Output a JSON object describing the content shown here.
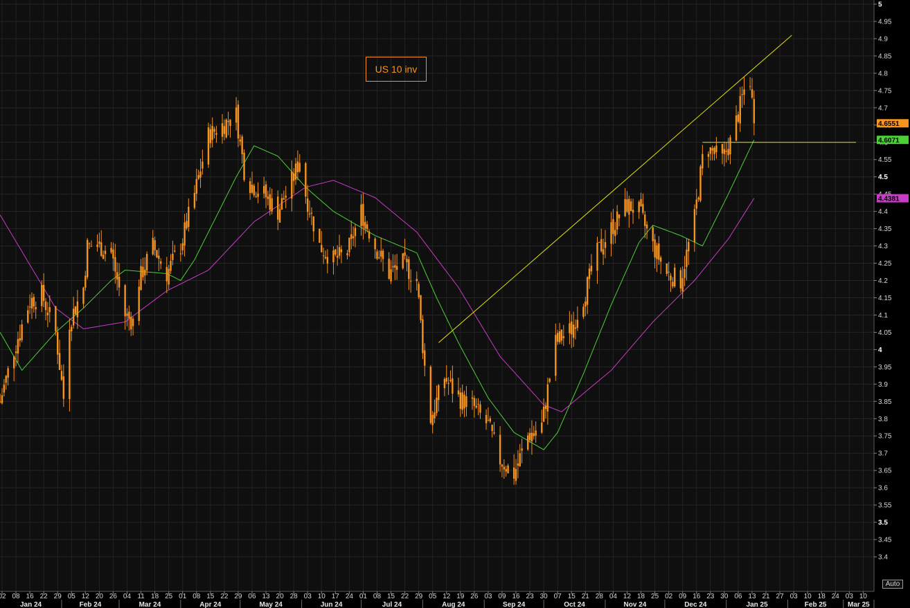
{
  "chart_data": {
    "type": "candlestick",
    "title": "US 10 inv",
    "ylim": [
      3.35,
      5.0
    ],
    "y_ticks": [
      "5",
      "4.95",
      "4.9",
      "4.85",
      "4.8",
      "4.75",
      "4.7",
      "4.65",
      "4.6",
      "4.55",
      "4.5",
      "4.45",
      "4.4",
      "4.35",
      "4.3",
      "4.25",
      "4.2",
      "4.15",
      "4.1",
      "4.05",
      "4",
      "3.95",
      "3.9",
      "3.85",
      "3.8",
      "3.75",
      "3.7",
      "3.65",
      "3.6",
      "3.55",
      "3.5",
      "3.45",
      "3.4"
    ],
    "y_major_ticks": [
      "5",
      "4.5",
      "4",
      "3.5"
    ],
    "x_day_ticks": [
      "02",
      "08",
      "16",
      "22",
      "29",
      "05",
      "12",
      "20",
      "26",
      "04",
      "11",
      "18",
      "25",
      "01",
      "08",
      "15",
      "22",
      "29",
      "06",
      "13",
      "20",
      "28",
      "03",
      "10",
      "17",
      "24",
      "01",
      "08",
      "15",
      "22",
      "29",
      "05",
      "12",
      "19",
      "26",
      "03",
      "09",
      "16",
      "23",
      "30",
      "07",
      "15",
      "21",
      "28",
      "04",
      "12",
      "18",
      "25",
      "02",
      "09",
      "16",
      "23",
      "30",
      "06",
      "13",
      "21",
      "27",
      "03",
      "10",
      "18",
      "24",
      "03",
      "10",
      "17",
      "24"
    ],
    "x_month_ticks": [
      "Jan 24",
      "Feb 24",
      "Mar 24",
      "Apr 24",
      "May 24",
      "Jun 24",
      "Jul 24",
      "Aug 24",
      "Sep 24",
      "Oct 24",
      "Nov 24",
      "Dec 24",
      "Jan 25",
      "Feb 25",
      "Mar 25"
    ],
    "series": [
      {
        "style": "candlestick",
        "color": "#f7941d",
        "anchors": [
          [
            "2024-01-01",
            3.85
          ],
          [
            "2024-01-08",
            4.0
          ],
          [
            "2024-01-16",
            4.14
          ],
          [
            "2024-01-22",
            4.16
          ],
          [
            "2024-01-29",
            4.05
          ],
          [
            "2024-02-02",
            3.86
          ],
          [
            "2024-02-05",
            4.08
          ],
          [
            "2024-02-12",
            4.18
          ],
          [
            "2024-02-14",
            4.3
          ],
          [
            "2024-02-20",
            4.3
          ],
          [
            "2024-02-26",
            4.28
          ],
          [
            "2024-03-04",
            4.1
          ],
          [
            "2024-03-08",
            4.08
          ],
          [
            "2024-03-11",
            4.2
          ],
          [
            "2024-03-18",
            4.3
          ],
          [
            "2024-03-25",
            4.22
          ],
          [
            "2024-04-01",
            4.3
          ],
          [
            "2024-04-08",
            4.45
          ],
          [
            "2024-04-15",
            4.62
          ],
          [
            "2024-04-22",
            4.65
          ],
          [
            "2024-04-29",
            4.68
          ],
          [
            "2024-05-03",
            4.52
          ],
          [
            "2024-05-06",
            4.48
          ],
          [
            "2024-05-13",
            4.45
          ],
          [
            "2024-05-20",
            4.4
          ],
          [
            "2024-05-28",
            4.5
          ],
          [
            "2024-05-31",
            4.55
          ],
          [
            "2024-06-03",
            4.45
          ],
          [
            "2024-06-10",
            4.3
          ],
          [
            "2024-06-17",
            4.26
          ],
          [
            "2024-06-24",
            4.28
          ],
          [
            "2024-07-01",
            4.4
          ],
          [
            "2024-07-08",
            4.3
          ],
          [
            "2024-07-15",
            4.22
          ],
          [
            "2024-07-22",
            4.25
          ],
          [
            "2024-07-29",
            4.2
          ],
          [
            "2024-08-02",
            3.95
          ],
          [
            "2024-08-05",
            3.8
          ],
          [
            "2024-08-12",
            3.92
          ],
          [
            "2024-08-19",
            3.86
          ],
          [
            "2024-08-26",
            3.84
          ],
          [
            "2024-09-03",
            3.78
          ],
          [
            "2024-09-09",
            3.68
          ],
          [
            "2024-09-16",
            3.64
          ],
          [
            "2024-09-23",
            3.75
          ],
          [
            "2024-09-30",
            3.78
          ],
          [
            "2024-10-04",
            3.92
          ],
          [
            "2024-10-07",
            4.02
          ],
          [
            "2024-10-15",
            4.06
          ],
          [
            "2024-10-21",
            4.15
          ],
          [
            "2024-10-28",
            4.28
          ],
          [
            "2024-11-04",
            4.35
          ],
          [
            "2024-11-12",
            4.42
          ],
          [
            "2024-11-18",
            4.4
          ],
          [
            "2024-11-25",
            4.3
          ],
          [
            "2024-12-02",
            4.22
          ],
          [
            "2024-12-09",
            4.2
          ],
          [
            "2024-12-16",
            4.38
          ],
          [
            "2024-12-20",
            4.55
          ],
          [
            "2024-12-23",
            4.58
          ],
          [
            "2024-12-30",
            4.55
          ],
          [
            "2025-01-03",
            4.6
          ],
          [
            "2025-01-06",
            4.66
          ],
          [
            "2025-01-10",
            4.75
          ],
          [
            "2025-01-13",
            4.78
          ],
          [
            "2025-01-15",
            4.6551
          ]
        ]
      },
      {
        "style": "line",
        "color": "#4cd137",
        "anchors": [
          [
            "2024-01-01",
            4.05
          ],
          [
            "2024-01-12",
            3.94
          ],
          [
            "2024-01-29",
            4.05
          ],
          [
            "2024-02-12",
            4.12
          ],
          [
            "2024-02-26",
            4.2
          ],
          [
            "2024-03-04",
            4.23
          ],
          [
            "2024-03-25",
            4.22
          ],
          [
            "2024-04-01",
            4.2
          ],
          [
            "2024-04-08",
            4.26
          ],
          [
            "2024-04-15",
            4.34
          ],
          [
            "2024-04-29",
            4.5
          ],
          [
            "2024-05-08",
            4.59
          ],
          [
            "2024-05-20",
            4.56
          ],
          [
            "2024-06-03",
            4.47
          ],
          [
            "2024-06-17",
            4.4
          ],
          [
            "2024-07-08",
            4.33
          ],
          [
            "2024-07-29",
            4.28
          ],
          [
            "2024-08-08",
            4.15
          ],
          [
            "2024-08-19",
            4.02
          ],
          [
            "2024-09-03",
            3.86
          ],
          [
            "2024-09-16",
            3.76
          ],
          [
            "2024-10-01",
            3.71
          ],
          [
            "2024-10-08",
            3.76
          ],
          [
            "2024-10-21",
            3.93
          ],
          [
            "2024-11-04",
            4.13
          ],
          [
            "2024-11-18",
            4.31
          ],
          [
            "2024-11-25",
            4.36
          ],
          [
            "2024-12-09",
            4.33
          ],
          [
            "2024-12-20",
            4.3
          ],
          [
            "2025-01-02",
            4.45
          ],
          [
            "2025-01-15",
            4.6071
          ]
        ]
      },
      {
        "style": "line",
        "color": "#c83cc8",
        "anchors": [
          [
            "2024-01-01",
            4.39
          ],
          [
            "2024-01-29",
            4.12
          ],
          [
            "2024-02-12",
            4.06
          ],
          [
            "2024-03-04",
            4.08
          ],
          [
            "2024-03-25",
            4.17
          ],
          [
            "2024-04-15",
            4.23
          ],
          [
            "2024-05-08",
            4.37
          ],
          [
            "2024-06-03",
            4.47
          ],
          [
            "2024-06-17",
            4.49
          ],
          [
            "2024-07-08",
            4.44
          ],
          [
            "2024-07-29",
            4.34
          ],
          [
            "2024-08-19",
            4.18
          ],
          [
            "2024-09-09",
            3.98
          ],
          [
            "2024-10-01",
            3.84
          ],
          [
            "2024-10-10",
            3.82
          ],
          [
            "2024-11-04",
            3.94
          ],
          [
            "2024-11-25",
            4.08
          ],
          [
            "2024-12-16",
            4.2
          ],
          [
            "2025-01-02",
            4.32
          ],
          [
            "2025-01-15",
            4.4381
          ]
        ]
      }
    ],
    "price_tags": [
      {
        "value": "4.6551",
        "y": 4.6551,
        "bg": "#f7941d",
        "fg": "#000000"
      },
      {
        "value": "4.6071",
        "y": 4.6071,
        "bg": "#4cd137",
        "fg": "#000000"
      },
      {
        "value": "4.4381",
        "y": 4.4381,
        "bg": "#c83cc8",
        "fg": "#000000"
      }
    ],
    "annotations": [
      {
        "type": "trendline",
        "color": "#e6e600",
        "from": [
          "2024-08-09",
          4.02
        ],
        "to": [
          "2025-02-03",
          4.91
        ]
      },
      {
        "type": "hline",
        "color": "#e6e600",
        "from": [
          "2024-12-20",
          4.6
        ],
        "to": [
          "2025-03-20",
          4.6
        ]
      }
    ],
    "grid": true,
    "auto_label": "Auto"
  }
}
